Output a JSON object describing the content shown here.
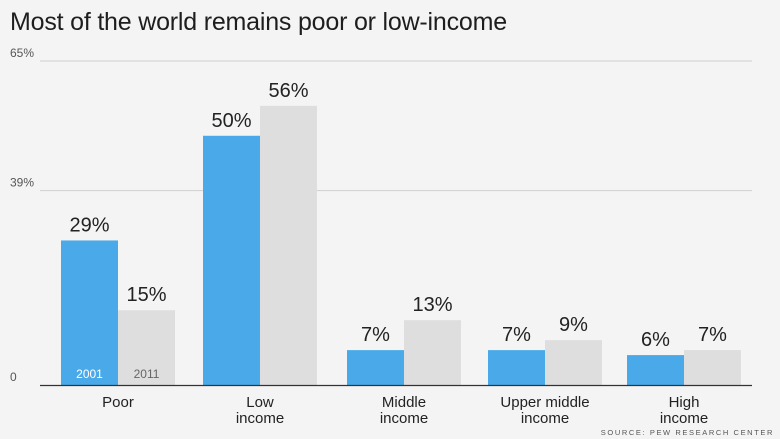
{
  "title": "Most of the world remains poor or low-income",
  "source": "SOURCE: PEW RESEARCH CENTER",
  "colors": {
    "series_2001": "#4aaae9",
    "series_2011": "#dedede",
    "grid": "#d0d0d0",
    "axis": "#333333",
    "tick_text": "#555555",
    "value_text": "#222222"
  },
  "chart_data": {
    "type": "bar",
    "title": "Most of the world remains poor or low-income",
    "categories": [
      "Poor",
      "Low income",
      "Middle income",
      "Upper middle income",
      "High income"
    ],
    "category_lines": [
      [
        "Poor"
      ],
      [
        "Low",
        "income"
      ],
      [
        "Middle",
        "income"
      ],
      [
        "Upper middle",
        "income"
      ],
      [
        "High",
        "income"
      ]
    ],
    "series": [
      {
        "name": "2001",
        "values": [
          29,
          50,
          7,
          7,
          6
        ],
        "labels": [
          "29%",
          "50%",
          "7%",
          "7%",
          "6%"
        ],
        "color": "#4aaae9"
      },
      {
        "name": "2011",
        "values": [
          15,
          56,
          13,
          9,
          7
        ],
        "labels": [
          "15%",
          "56%",
          "13%",
          "9%",
          "7%"
        ],
        "color": "#dedede"
      }
    ],
    "yticks": [
      0,
      39,
      65
    ],
    "ytick_labels": [
      "0",
      "39%",
      "65%"
    ],
    "ylim": [
      0,
      65
    ],
    "grid": true,
    "xlabel": "",
    "ylabel": ""
  }
}
